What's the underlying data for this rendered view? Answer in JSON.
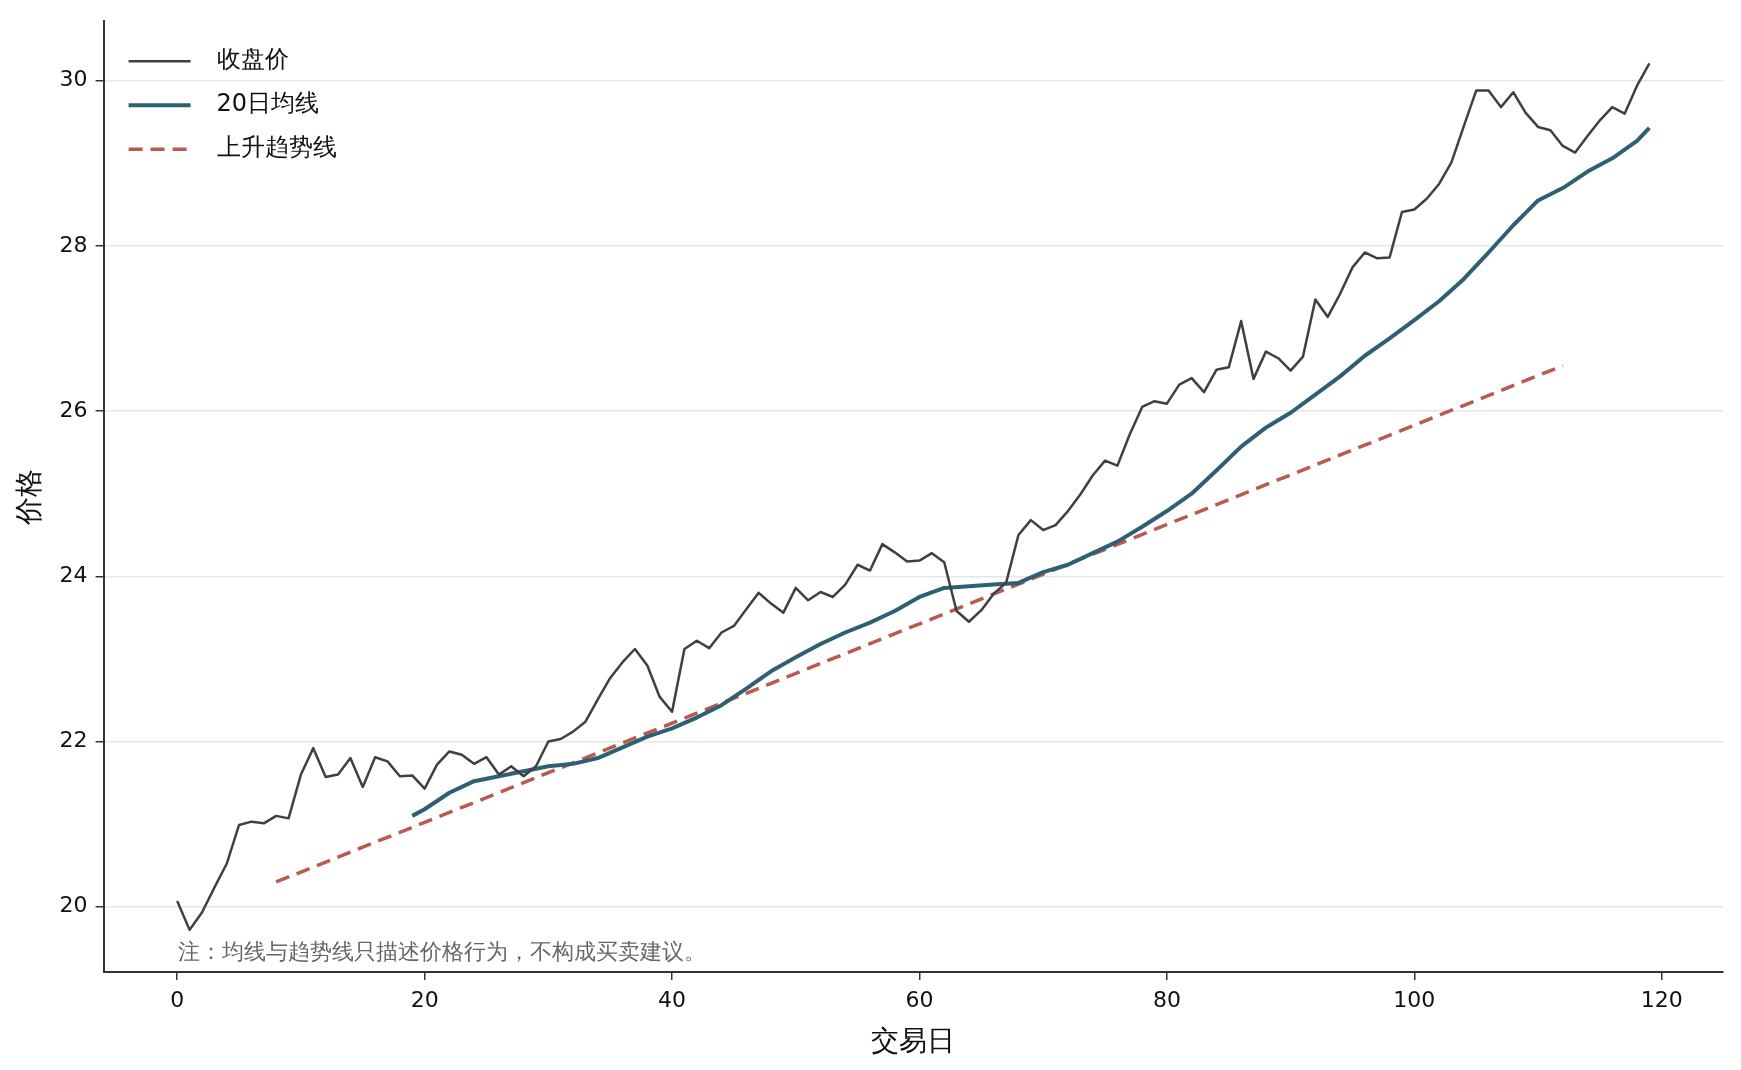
{
  "chart_data": {
    "type": "line",
    "xlabel": "交易日",
    "ylabel": "价格",
    "xlim": [
      -5.95,
      124.95
    ],
    "xticks": [
      0,
      20,
      40,
      60,
      80,
      100,
      120
    ],
    "ylim": [
      19.21,
      30.72
    ],
    "yticks": [
      20,
      22,
      24,
      26,
      28,
      30
    ],
    "grid": "y",
    "legend": "top left",
    "marker": "none",
    "annotations": [
      "注：均线与趋势线只描述价格行为，不构成买卖建议。"
    ],
    "series": [
      {
        "name": "收盘价",
        "color": "#404040",
        "line_style": "solid",
        "x": [
          0,
          1,
          2,
          3,
          4,
          5,
          6,
          7,
          8,
          9,
          10,
          11,
          12,
          13,
          14,
          15,
          16,
          17,
          18,
          19,
          20,
          21,
          22,
          23,
          24,
          25,
          26,
          27,
          28,
          29,
          30,
          31,
          32,
          33,
          34,
          35,
          36,
          37,
          38,
          39,
          40,
          41,
          42,
          43,
          44,
          45,
          46,
          47,
          48,
          49,
          50,
          51,
          52,
          53,
          54,
          55,
          56,
          57,
          58,
          59,
          60,
          61,
          62,
          63,
          64,
          65,
          66,
          67,
          68,
          69,
          70,
          71,
          72,
          73,
          74,
          75,
          76,
          77,
          78,
          79,
          80,
          81,
          82,
          83,
          84,
          85,
          86,
          87,
          88,
          89,
          90,
          91,
          92,
          93,
          94,
          95,
          96,
          97,
          98,
          99,
          100,
          101,
          102,
          103,
          104,
          105,
          106,
          107,
          108,
          109,
          110,
          111,
          112,
          113,
          114,
          115,
          116,
          117,
          118,
          119
        ],
        "values": [
          20.07,
          19.72,
          19.93,
          20.23,
          20.52,
          20.99,
          21.03,
          21.01,
          21.1,
          21.07,
          21.6,
          21.92,
          21.57,
          21.6,
          21.8,
          21.45,
          21.81,
          21.76,
          21.58,
          21.59,
          21.43,
          21.72,
          21.88,
          21.84,
          21.73,
          21.81,
          21.6,
          21.7,
          21.58,
          21.7,
          22.0,
          22.03,
          22.12,
          22.24,
          22.51,
          22.77,
          22.96,
          23.12,
          22.92,
          22.54,
          22.36,
          23.12,
          23.22,
          23.13,
          23.32,
          23.4,
          23.6,
          23.8,
          23.67,
          23.56,
          23.86,
          23.71,
          23.81,
          23.75,
          23.9,
          24.14,
          24.07,
          24.39,
          24.29,
          24.18,
          24.19,
          24.28,
          24.17,
          23.58,
          23.45,
          23.59,
          23.79,
          23.92,
          24.5,
          24.68,
          24.56,
          24.62,
          24.79,
          24.99,
          25.22,
          25.4,
          25.34,
          25.72,
          26.05,
          26.12,
          26.09,
          26.32,
          26.4,
          26.23,
          26.5,
          26.53,
          27.09,
          26.39,
          26.72,
          26.64,
          26.49,
          26.66,
          27.35,
          27.14,
          27.42,
          27.74,
          27.92,
          27.85,
          27.86,
          28.41,
          28.44,
          28.57,
          28.75,
          29.01,
          29.45,
          29.88,
          29.88,
          29.68,
          29.86,
          29.61,
          29.44,
          29.4,
          29.21,
          29.13,
          29.33,
          29.52,
          29.68,
          29.6,
          29.94,
          30.21
        ]
      },
      {
        "name": "20日均线",
        "color": "#2e5f73",
        "line_style": "solid",
        "x": [
          19,
          20,
          22,
          24,
          26,
          28,
          30,
          32,
          34,
          36,
          38,
          40,
          42,
          44,
          46,
          48,
          50,
          52,
          54,
          56,
          58,
          60,
          62,
          64,
          66,
          68,
          70,
          72,
          74,
          76,
          78,
          80,
          82,
          84,
          86,
          88,
          90,
          92,
          94,
          96,
          98,
          100,
          102,
          104,
          106,
          108,
          110,
          112,
          114,
          116,
          118,
          119
        ],
        "values": [
          21.1,
          21.18,
          21.38,
          21.52,
          21.58,
          21.64,
          21.7,
          21.73,
          21.8,
          21.93,
          22.06,
          22.16,
          22.29,
          22.44,
          22.64,
          22.85,
          23.02,
          23.18,
          23.32,
          23.44,
          23.58,
          23.75,
          23.86,
          23.88,
          23.9,
          23.92,
          24.05,
          24.14,
          24.28,
          24.42,
          24.6,
          24.79,
          25.0,
          25.28,
          25.57,
          25.8,
          25.98,
          26.2,
          26.42,
          26.67,
          26.88,
          27.1,
          27.33,
          27.6,
          27.92,
          28.25,
          28.55,
          28.7,
          28.9,
          29.06,
          29.27,
          29.43
        ]
      },
      {
        "name": "上升趋势线",
        "color": "#b85a50",
        "line_style": "dashed",
        "x": [
          8,
          112
        ],
        "values": [
          20.3,
          26.55
        ]
      }
    ]
  }
}
